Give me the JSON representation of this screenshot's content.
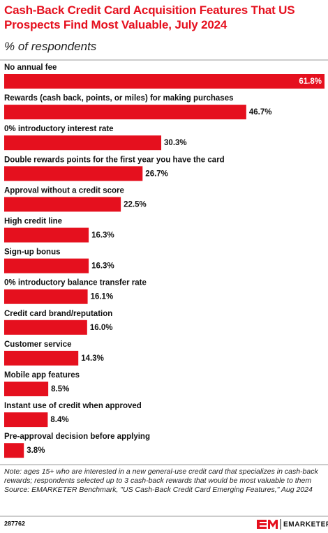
{
  "chart_data": {
    "type": "bar",
    "orientation": "horizontal",
    "title": "Cash-Back Credit Card Acquisition Features That US Prospects Find Most Valuable, July 2024",
    "subtitle": "% of respondents",
    "categories": [
      "No annual fee",
      "Rewards (cash back, points, or miles) for making purchases",
      "0% introductory interest rate",
      "Double rewards points for the first year you have the card",
      "Approval without a credit score",
      "High credit line",
      "Sign-up bonus",
      "0% introductory balance transfer rate",
      "Credit card brand/reputation",
      "Customer service",
      "Mobile app features",
      "Instant use of credit when approved",
      "Pre-approval decision before applying"
    ],
    "values": [
      61.8,
      46.7,
      30.3,
      26.7,
      22.5,
      16.3,
      16.3,
      16.1,
      16.0,
      14.3,
      8.5,
      8.4,
      3.8
    ],
    "value_labels": [
      "61.8%",
      "46.7%",
      "30.3%",
      "26.7%",
      "22.5%",
      "16.3%",
      "16.3%",
      "16.1%",
      "16.0%",
      "14.3%",
      "8.5%",
      "8.4%",
      "3.8%"
    ],
    "color": "#e5101e",
    "note": "Note: ages 15+ who are interested in a new general-use credit card that specializes in cash-back rewards; respondents selected up to 3 cash-back rewards that would be most valuable to them",
    "source": "Source: EMARKETER Benchmark, \"US Cash-Back Credit Card Emerging Features,\" Aug 2024",
    "chart_id": "287762",
    "brand": "EMARKETER"
  }
}
